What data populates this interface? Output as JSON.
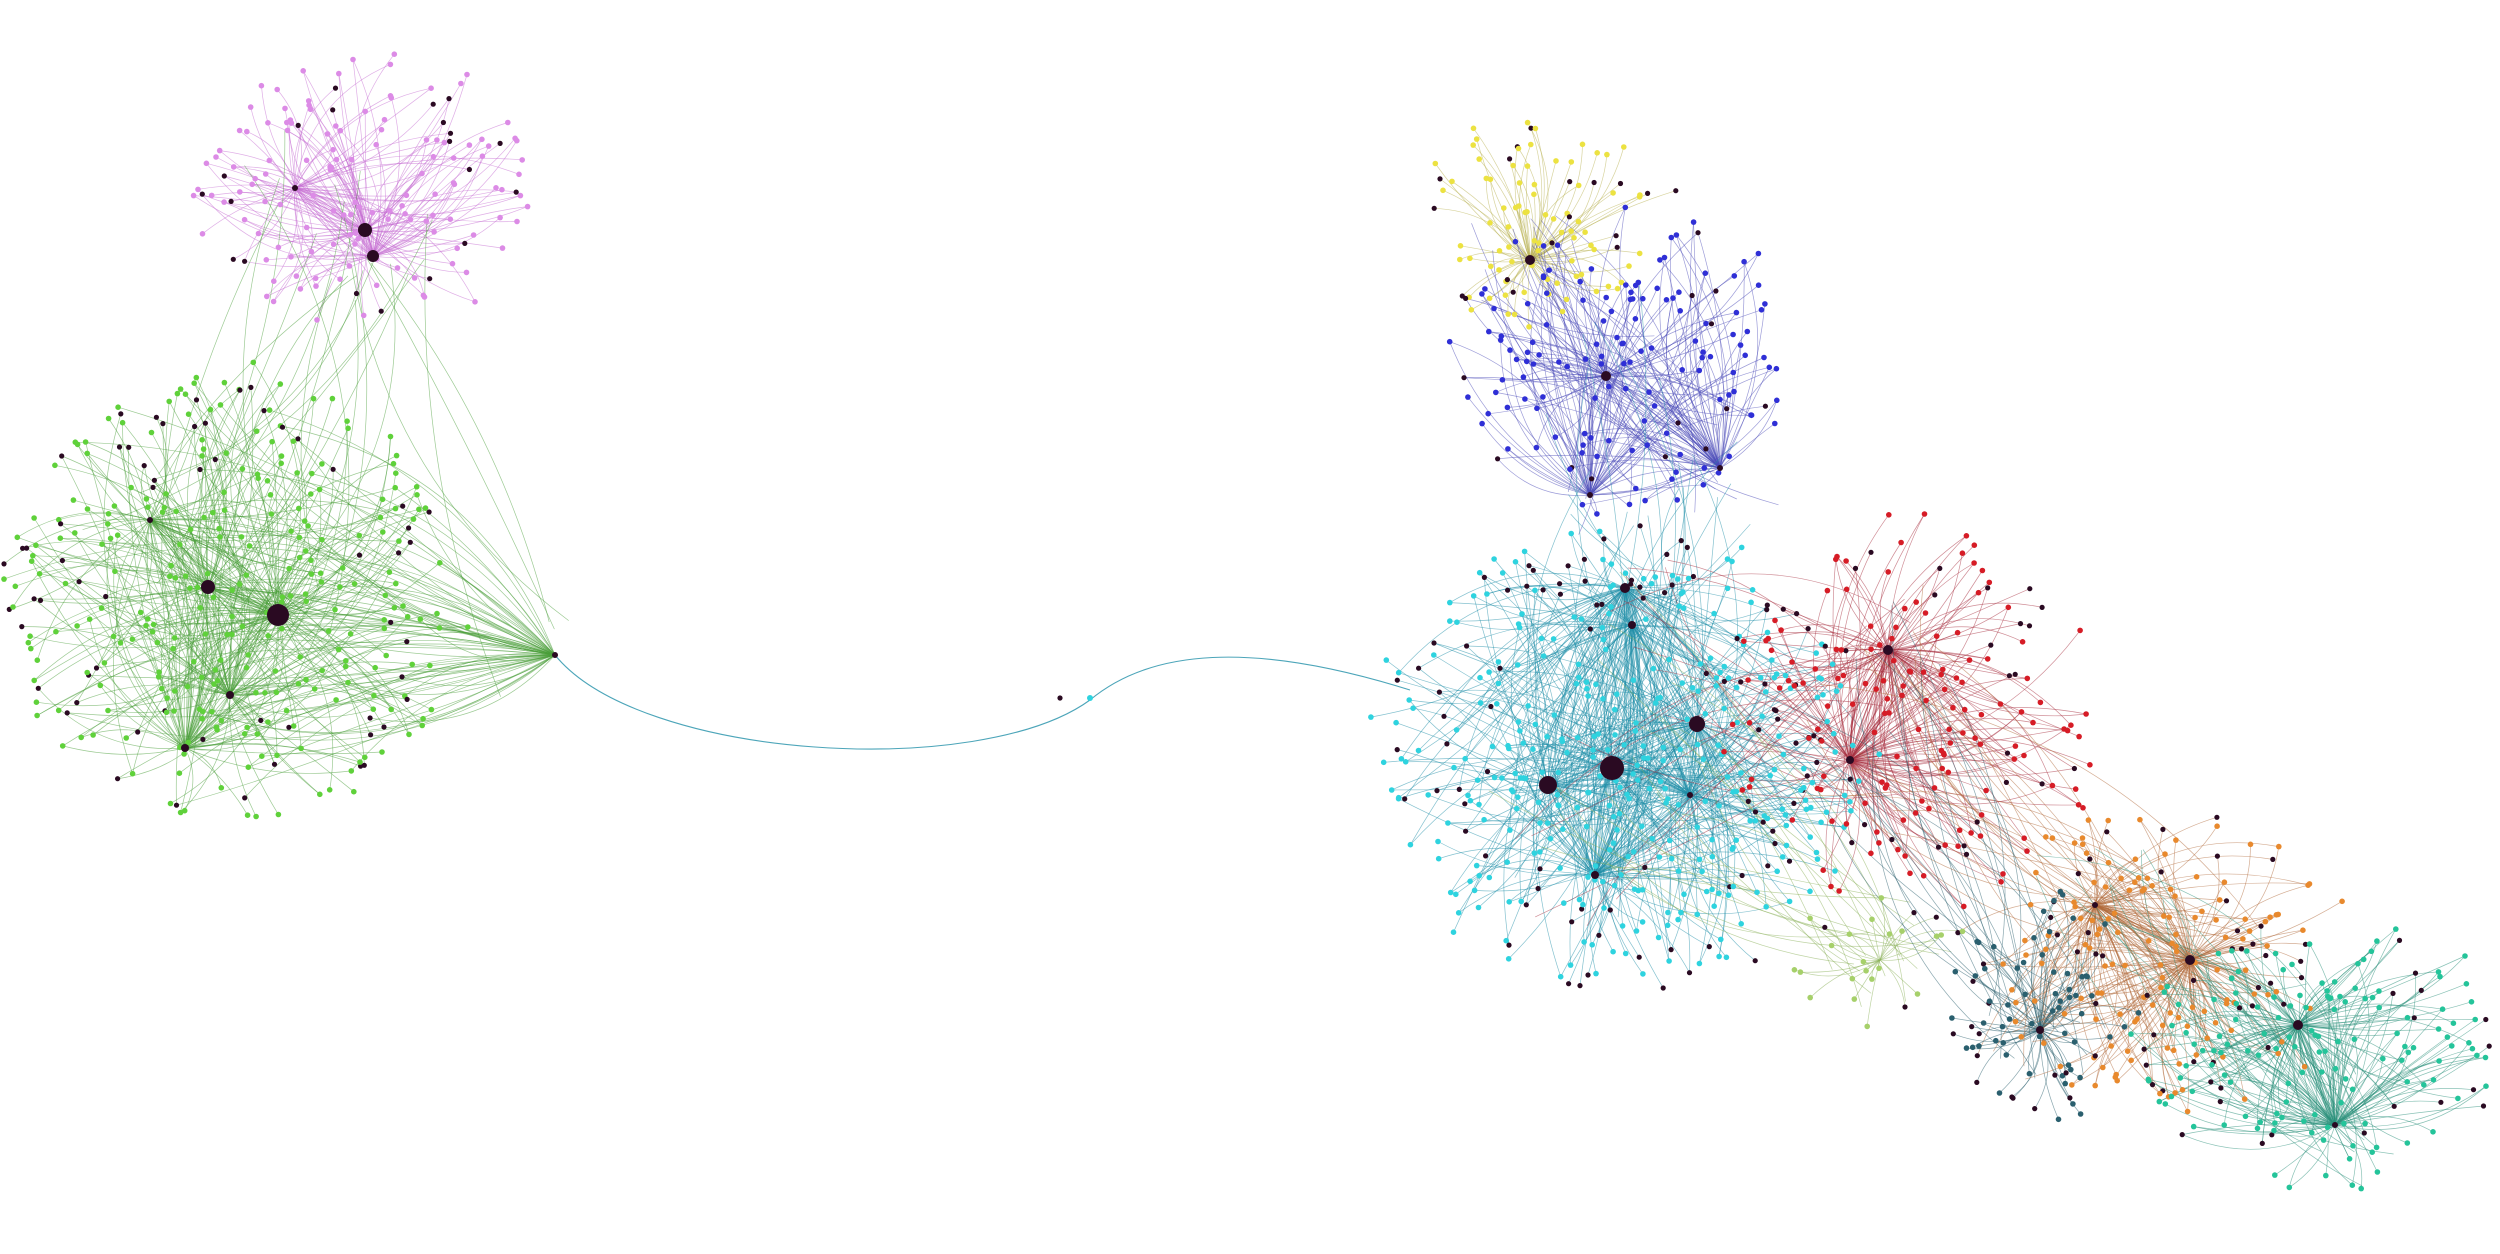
{
  "graph": {
    "background": "#ffffff",
    "hub_color": "#2a0a22",
    "communities": [
      {
        "name": "community-violet",
        "color": "#dc8be6",
        "edge_color": "#c46bd2"
      },
      {
        "name": "community-green",
        "color": "#5fd13a",
        "edge_color": "#4a9e3a"
      },
      {
        "name": "community-yellow",
        "color": "#ece241",
        "edge_color": "#b8b050"
      },
      {
        "name": "community-blue",
        "color": "#2f2fd6",
        "edge_color": "#4b4bb8"
      },
      {
        "name": "community-cyan",
        "color": "#2ed3df",
        "edge_color": "#1f8ea8"
      },
      {
        "name": "community-red",
        "color": "#d61c26",
        "edge_color": "#a83040"
      },
      {
        "name": "community-orange",
        "color": "#e8892d",
        "edge_color": "#b06a3a"
      },
      {
        "name": "community-teal",
        "color": "#24c49a",
        "edge_color": "#2a8f7a"
      },
      {
        "name": "community-dark-teal",
        "color": "#2a5f6e",
        "edge_color": "#2a5f6e"
      },
      {
        "name": "community-lime",
        "color": "#a6d06a",
        "edge_color": "#8ab05a"
      }
    ],
    "node_count_estimate": 2200
  }
}
